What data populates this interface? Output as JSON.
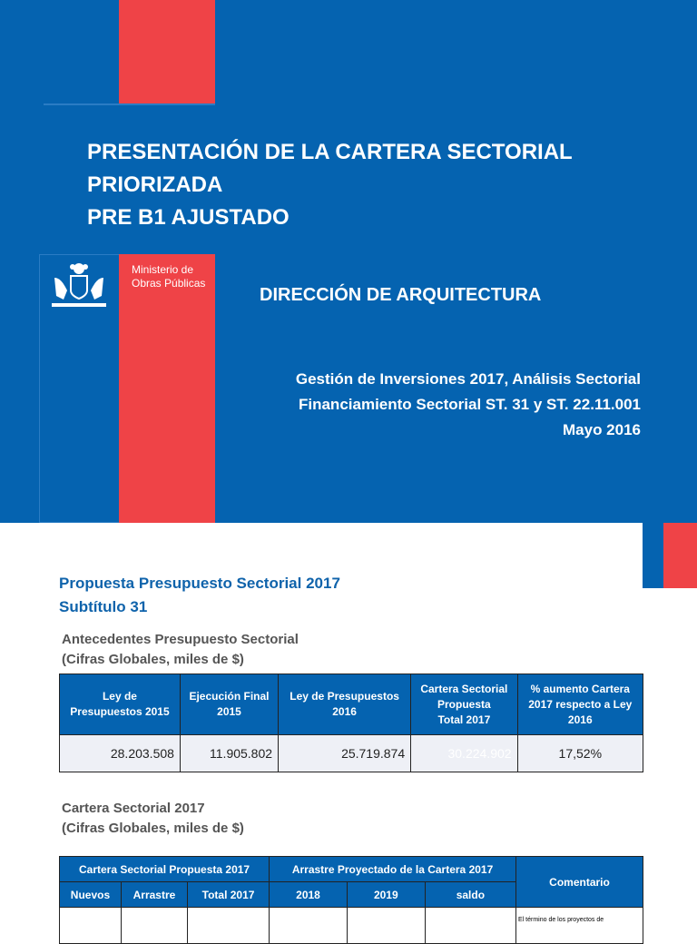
{
  "slide1": {
    "title_lines": [
      "PRESENTACIÓN DE LA CARTERA SECTORIAL",
      "PRIORIZADA",
      "PRE B1 AJUSTADO"
    ],
    "ministry": [
      "Ministerio de",
      "Obras Públicas"
    ],
    "direccion": "DIRECCIÓN DE ARQUITECTURA",
    "subtitle_lines": [
      "Gestión de Inversiones 2017, Análisis Sectorial",
      "Financiamiento Sectorial ST. 31 y ST. 22.11.001",
      "Mayo 2016"
    ],
    "colors": {
      "blue": "#0563b0",
      "red": "#ef4347"
    }
  },
  "slide2": {
    "title_lines": [
      "Propuesta Presupuesto Sectorial 2017",
      "Subtítulo 31"
    ],
    "section1": [
      "Antecedentes Presupuesto Sectorial",
      "(Cifras Globales, miles de $)"
    ],
    "table1": {
      "headers": [
        [
          "Ley de",
          "Presupuestos 2015"
        ],
        [
          "Ejecución Final",
          "2015"
        ],
        [
          "Ley de Presupuestos",
          "2016"
        ],
        [
          "Cartera Sectorial",
          "Propuesta",
          "Total 2017"
        ],
        [
          "% aumento Cartera",
          "2017 respecto a Ley",
          "2016"
        ]
      ],
      "values": [
        "28.203.508",
        "11.905.802",
        "25.719.874",
        "30.224.902",
        "17,52%"
      ]
    },
    "section2": [
      "Cartera Sectorial 2017",
      "(Cifras Globales, miles de $)"
    ],
    "table2": {
      "group1": "Cartera Sectorial Propuesta 2017",
      "group2": "Arrastre Proyectado de la Cartera 2017",
      "comment": "Comentario",
      "subheaders": [
        "Nuevos",
        "Arrastre",
        "Total 2017",
        "2018",
        "2019",
        "saldo"
      ],
      "comment_text": "El término de los proyectos de"
    }
  }
}
